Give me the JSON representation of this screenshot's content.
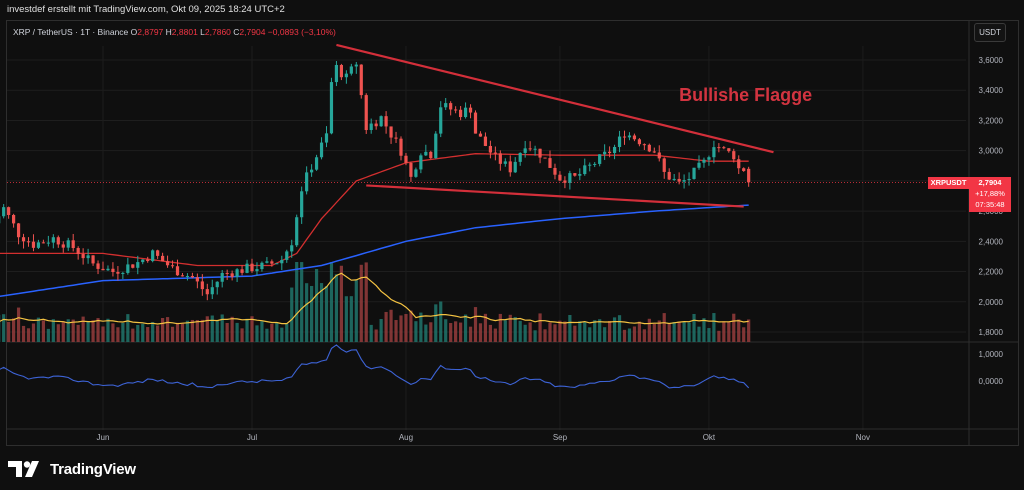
{
  "header": {
    "created_by": "investdef erstellt mit TradingView.com, Okt 09, 2025 18:24 UTC+2"
  },
  "legend": {
    "symbol_info": "XRP / TetherUS · 1T · Binance",
    "open_label": "O",
    "open": "2,8797",
    "high_label": "H",
    "high": "2,8801",
    "low_label": "L",
    "low": "2,7860",
    "close_label": "C",
    "close": "2,7904",
    "change": "−0,0893 (−3,10%)"
  },
  "currency_button": "USDT",
  "price_tag": {
    "symbol": "XRPUSDT",
    "price": "2,7904",
    "change_pct": "+17,88%",
    "countdown": "07:35:48",
    "color": "#f23645"
  },
  "annotation": {
    "text": "Bullishe Flagge",
    "color": "#d23440"
  },
  "logo_text": "TradingView",
  "chart_data": {
    "type": "candlestick",
    "price_axis": {
      "ticks": [
        "3,6000",
        "3,4000",
        "3,2000",
        "3,0000",
        "2,8000",
        "2,6000",
        "2,4000",
        "2,2000",
        "2,0000",
        "1,8000"
      ],
      "values": [
        3.6,
        3.4,
        3.2,
        3.0,
        2.8,
        2.6,
        2.4,
        2.2,
        2.0,
        1.8
      ]
    },
    "oscillator_axis": {
      "ticks": [
        "1,0000",
        "0,0000"
      ],
      "values": [
        1.0,
        0.0
      ]
    },
    "time_axis": {
      "labels": [
        "Jun",
        "Jul",
        "Aug",
        "Sep",
        "Okt",
        "Nov"
      ]
    },
    "date_range": [
      "2025-05-10",
      "2025-10-09"
    ],
    "candle_anchors": [
      [
        "2025-05-10",
        2.52
      ],
      [
        "2025-05-12",
        2.62
      ],
      [
        "2025-05-15",
        2.45
      ],
      [
        "2025-05-18",
        2.38
      ],
      [
        "2025-05-22",
        2.42
      ],
      [
        "2025-05-26",
        2.36
      ],
      [
        "2025-05-30",
        2.25
      ],
      [
        "2025-06-03",
        2.2
      ],
      [
        "2025-06-08",
        2.26
      ],
      [
        "2025-06-11",
        2.32
      ],
      [
        "2025-06-15",
        2.22
      ],
      [
        "2025-06-19",
        2.16
      ],
      [
        "2025-06-22",
        2.05
      ],
      [
        "2025-06-25",
        2.18
      ],
      [
        "2025-06-30",
        2.22
      ],
      [
        "2025-07-04",
        2.24
      ],
      [
        "2025-07-07",
        2.28
      ],
      [
        "2025-07-09",
        2.4
      ],
      [
        "2025-07-11",
        2.75
      ],
      [
        "2025-07-13",
        2.9
      ],
      [
        "2025-07-16",
        3.1
      ],
      [
        "2025-07-17",
        3.45
      ],
      [
        "2025-07-18",
        3.55
      ],
      [
        "2025-07-20",
        3.48
      ],
      [
        "2025-07-22",
        3.58
      ],
      [
        "2025-07-24",
        3.15
      ],
      [
        "2025-07-27",
        3.22
      ],
      [
        "2025-07-31",
        3.0
      ],
      [
        "2025-08-02",
        2.82
      ],
      [
        "2025-08-04",
        3.0
      ],
      [
        "2025-08-06",
        2.98
      ],
      [
        "2025-08-08",
        3.3
      ],
      [
        "2025-08-12",
        3.25
      ],
      [
        "2025-08-14",
        3.28
      ],
      [
        "2025-08-15",
        3.12
      ],
      [
        "2025-08-19",
        2.95
      ],
      [
        "2025-08-22",
        2.88
      ],
      [
        "2025-08-25",
        3.05
      ],
      [
        "2025-08-28",
        2.98
      ],
      [
        "2025-09-01",
        2.82
      ],
      [
        "2025-09-04",
        2.82
      ],
      [
        "2025-09-08",
        2.92
      ],
      [
        "2025-09-12",
        3.02
      ],
      [
        "2025-09-14",
        3.12
      ],
      [
        "2025-09-18",
        3.05
      ],
      [
        "2025-09-20",
        3.0
      ],
      [
        "2025-09-22",
        2.85
      ],
      [
        "2025-09-25",
        2.78
      ],
      [
        "2025-09-27",
        2.82
      ],
      [
        "2025-09-30",
        2.92
      ],
      [
        "2025-10-02",
        3.05
      ],
      [
        "2025-10-04",
        3.0
      ],
      [
        "2025-10-06",
        2.97
      ],
      [
        "2025-10-07",
        2.88
      ],
      [
        "2025-10-08",
        2.88
      ],
      [
        "2025-10-09",
        2.79
      ]
    ],
    "moving_average_red": [
      [
        "2025-05-10",
        2.32
      ],
      [
        "2025-06-01",
        2.32
      ],
      [
        "2025-06-20",
        2.24
      ],
      [
        "2025-07-05",
        2.24
      ],
      [
        "2025-07-10",
        2.32
      ],
      [
        "2025-07-15",
        2.55
      ],
      [
        "2025-07-22",
        2.8
      ],
      [
        "2025-08-01",
        2.92
      ],
      [
        "2025-08-15",
        2.98
      ],
      [
        "2025-09-01",
        2.97
      ],
      [
        "2025-09-20",
        2.97
      ],
      [
        "2025-10-01",
        2.93
      ],
      [
        "2025-10-09",
        2.93
      ]
    ],
    "moving_average_blue": [
      [
        "2025-05-10",
        2.03
      ],
      [
        "2025-06-01",
        2.14
      ],
      [
        "2025-07-01",
        2.17
      ],
      [
        "2025-07-15",
        2.24
      ],
      [
        "2025-08-01",
        2.4
      ],
      [
        "2025-08-15",
        2.49
      ],
      [
        "2025-09-01",
        2.55
      ],
      [
        "2025-09-20",
        2.6
      ],
      [
        "2025-10-09",
        2.64
      ]
    ],
    "pattern_upper_line": [
      [
        "2025-07-18",
        3.7
      ],
      [
        "2025-10-14",
        2.99
      ]
    ],
    "pattern_lower_line": [
      [
        "2025-07-24",
        2.77
      ],
      [
        "2025-10-08",
        2.63
      ]
    ],
    "colors": {
      "up": "#26a69a",
      "down": "#ef5350",
      "ma_red": "#d32f2f",
      "ma_blue": "#2962ff",
      "volume_ma": "#f5c342",
      "pattern_lines": "#d32f3a",
      "oscillator": "#3d63d6"
    }
  }
}
